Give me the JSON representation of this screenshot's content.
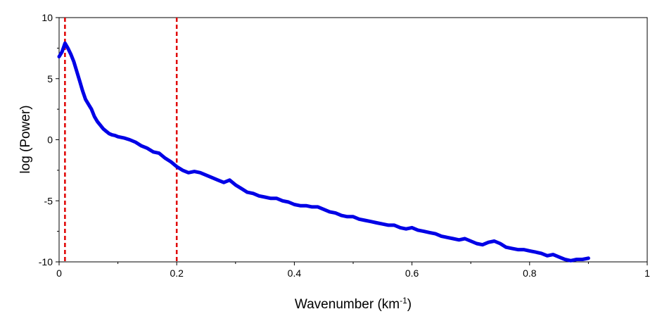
{
  "chart_data": {
    "type": "line",
    "title": "",
    "xlabel": "Wavenumber (km",
    "xlabel_superscript": "-1",
    "xlabel_suffix": ")",
    "ylabel": "log (Power)",
    "xlim": [
      0,
      1
    ],
    "ylim": [
      -10,
      10
    ],
    "xticks": [
      "0",
      "0.2",
      "0.4",
      "0.6",
      "0.8",
      "1"
    ],
    "yticks": [
      "10",
      "5",
      "0",
      "-5",
      "-10"
    ],
    "grid": false,
    "series_color": "#0000e6",
    "marker_color": "#e00000",
    "markers_x": [
      0.01,
      0.2
    ],
    "series": [
      {
        "x": [
          0,
          0.005,
          0.01,
          0.015,
          0.02,
          0.025,
          0.03,
          0.035,
          0.04,
          0.045,
          0.05,
          0.055,
          0.06,
          0.065,
          0.07,
          0.075,
          0.08,
          0.085,
          0.09,
          0.095,
          0.1,
          0.11,
          0.12,
          0.13,
          0.14,
          0.15,
          0.16,
          0.17,
          0.18,
          0.19,
          0.2,
          0.21,
          0.22,
          0.23,
          0.24,
          0.25,
          0.26,
          0.27,
          0.28,
          0.29,
          0.3,
          0.31,
          0.32,
          0.33,
          0.34,
          0.35,
          0.36,
          0.37,
          0.38,
          0.39,
          0.4,
          0.41,
          0.42,
          0.43,
          0.44,
          0.45,
          0.46,
          0.47,
          0.48,
          0.49,
          0.5,
          0.51,
          0.52,
          0.53,
          0.54,
          0.55,
          0.56,
          0.57,
          0.58,
          0.59,
          0.6,
          0.61,
          0.62,
          0.63,
          0.64,
          0.65,
          0.66,
          0.67,
          0.68,
          0.69,
          0.7,
          0.71,
          0.72,
          0.73,
          0.74,
          0.75,
          0.76,
          0.77,
          0.78,
          0.79,
          0.8,
          0.81,
          0.82,
          0.83,
          0.84,
          0.85,
          0.86,
          0.87,
          0.88,
          0.89,
          0.9
        ],
        "y": [
          6.8,
          7.2,
          7.9,
          7.5,
          7.0,
          6.4,
          5.6,
          4.8,
          4.0,
          3.3,
          2.9,
          2.5,
          1.9,
          1.5,
          1.2,
          0.9,
          0.7,
          0.5,
          0.4,
          0.35,
          0.25,
          0.15,
          0.0,
          -0.2,
          -0.5,
          -0.7,
          -1.0,
          -1.1,
          -1.5,
          -1.8,
          -2.2,
          -2.5,
          -2.7,
          -2.6,
          -2.7,
          -2.9,
          -3.1,
          -3.3,
          -3.5,
          -3.3,
          -3.7,
          -4.0,
          -4.3,
          -4.4,
          -4.6,
          -4.7,
          -4.8,
          -4.8,
          -5.0,
          -5.1,
          -5.3,
          -5.4,
          -5.4,
          -5.5,
          -5.5,
          -5.7,
          -5.9,
          -6.0,
          -6.2,
          -6.3,
          -6.3,
          -6.5,
          -6.6,
          -6.7,
          -6.8,
          -6.9,
          -7.0,
          -7.0,
          -7.2,
          -7.3,
          -7.2,
          -7.4,
          -7.5,
          -7.6,
          -7.7,
          -7.9,
          -8.0,
          -8.1,
          -8.2,
          -8.1,
          -8.3,
          -8.5,
          -8.6,
          -8.4,
          -8.3,
          -8.5,
          -8.8,
          -8.9,
          -9.0,
          -9.0,
          -9.1,
          -9.2,
          -9.3,
          -9.5,
          -9.4,
          -9.6,
          -9.8,
          -9.9,
          -9.8,
          -9.8,
          -9.7
        ]
      }
    ]
  }
}
